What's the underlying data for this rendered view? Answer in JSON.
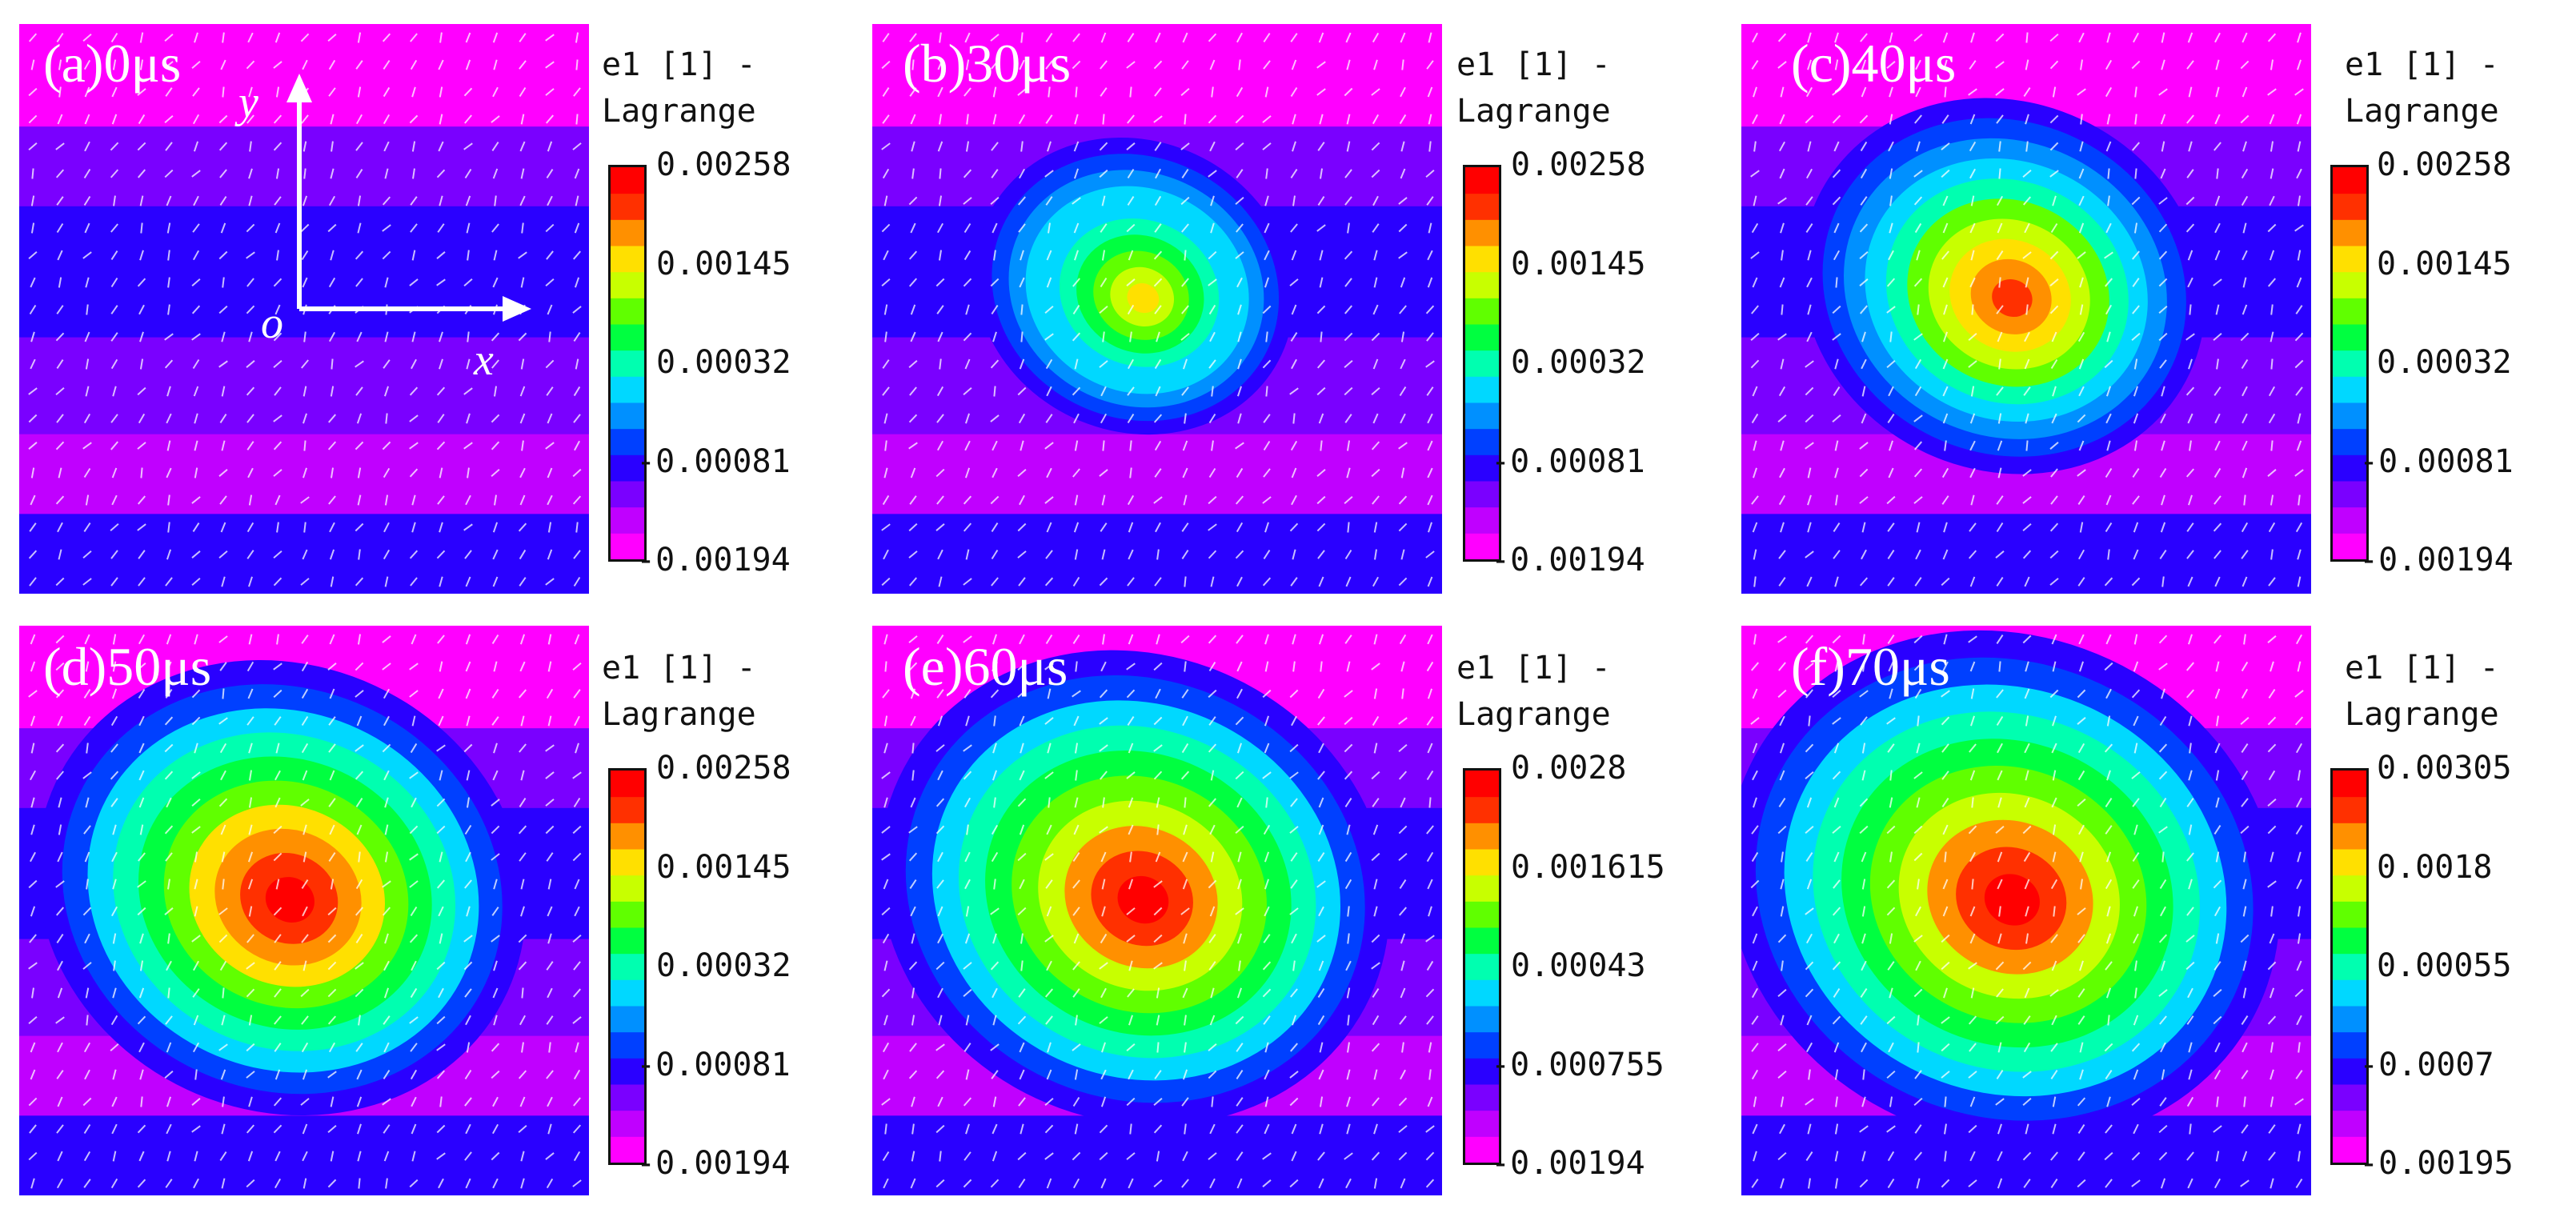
{
  "chart_data": [
    {
      "type": "heatmap",
      "title": "(a)0μs",
      "colorbar": {
        "title_line1": "e1 [1] -",
        "title_line2": "Lagrange",
        "ticks": [
          "0.00258",
          "0.00145",
          "0.00032",
          "-0.00081",
          "-0.00194"
        ],
        "range": [
          -0.00194,
          0.00258
        ]
      },
      "axes": {
        "y": "y",
        "origin": "o",
        "x": "x"
      },
      "hotspot": {
        "peak_strain": -0.0006,
        "radius_fraction": 0.0
      }
    },
    {
      "type": "heatmap",
      "title": "(b)30μs",
      "colorbar": {
        "title_line1": "e1 [1] -",
        "title_line2": "Lagrange",
        "ticks": [
          "0.00258",
          "0.00145",
          "0.00032",
          "-0.00081",
          "-0.00194"
        ],
        "range": [
          -0.00194,
          0.00258
        ]
      },
      "hotspot": {
        "peak_strain": 0.0014,
        "radius_fraction": 0.3
      }
    },
    {
      "type": "heatmap",
      "title": "(c)40μs",
      "colorbar": {
        "title_line1": "e1 [1] -",
        "title_line2": "Lagrange",
        "ticks": [
          "0.00258",
          "0.00145",
          "0.00032",
          "-0.00081",
          "-0.00194"
        ],
        "range": [
          -0.00194,
          0.00258
        ]
      },
      "hotspot": {
        "peak_strain": 0.0021,
        "radius_fraction": 0.38
      }
    },
    {
      "type": "heatmap",
      "title": "(d)50μs",
      "colorbar": {
        "title_line1": "e1 [1] -",
        "title_line2": "Lagrange",
        "ticks": [
          "0.00258",
          "0.00145",
          "0.00032",
          "-0.00081",
          "-0.00194"
        ],
        "range": [
          -0.00194,
          0.00258
        ]
      },
      "hotspot": {
        "peak_strain": 0.0025,
        "radius_fraction": 0.46
      }
    },
    {
      "type": "heatmap",
      "title": "(e)60μs",
      "colorbar": {
        "title_line1": "e1 [1] -",
        "title_line2": "Lagrange",
        "ticks": [
          "0.0028",
          "0.001615",
          "0.00043",
          "-0.000755",
          "-0.00194"
        ],
        "range": [
          -0.00194,
          0.0028
        ]
      },
      "hotspot": {
        "peak_strain": 0.0027,
        "radius_fraction": 0.48
      }
    },
    {
      "type": "heatmap",
      "title": "(f)70μs",
      "colorbar": {
        "title_line1": "e1 [1] -",
        "title_line2": "Lagrange",
        "ticks": [
          "0.00305",
          "0.0018",
          "0.00055",
          "-0.0007",
          "-0.00195"
        ],
        "range": [
          -0.00195,
          0.00305
        ]
      },
      "hotspot": {
        "peak_strain": 0.0029,
        "radius_fraction": 0.52
      }
    }
  ],
  "palette": [
    "#ff00ff",
    "#c000ff",
    "#7a00ff",
    "#2a00ff",
    "#0040ff",
    "#0090ff",
    "#00d8ff",
    "#00ffb0",
    "#00ff40",
    "#60ff00",
    "#c8ff00",
    "#ffe000",
    "#ff9000",
    "#ff3000",
    "#ff0000"
  ]
}
